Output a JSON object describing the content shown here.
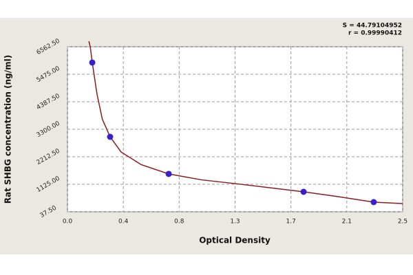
{
  "chart_data": {
    "type": "scatter",
    "annotations": [
      "S = 44.79104952",
      "r = 0.99990412"
    ],
    "x_label": "Optical Density",
    "y_label": "Rat SHBG concentration (ng/ml)",
    "x": [
      0.185,
      0.318,
      0.755,
      1.761,
      2.284
    ],
    "values": [
      5938,
      3001,
      1533,
      826,
      418
    ],
    "color": "#3a20c8",
    "curve": {
      "x": [
        0.17,
        0.185,
        0.22,
        0.26,
        0.318,
        0.4,
        0.55,
        0.755,
        1.0,
        1.3,
        1.761,
        2.0,
        2.284,
        2.5
      ],
      "values": [
        6562.5,
        5938,
        4700,
        3700,
        3001,
        2400,
        1900,
        1533,
        1300,
        1120,
        826,
        650,
        418,
        360
      ],
      "color": "#8b1a1a"
    },
    "xlim": [
      0,
      2.5
    ],
    "xticks": [
      {
        "value": 0,
        "label": "0.0"
      },
      {
        "value": 0.4167,
        "label": "0.4"
      },
      {
        "value": 0.8333,
        "label": "0.8"
      },
      {
        "value": 1.25,
        "label": "1.3"
      },
      {
        "value": 1.6667,
        "label": "1.7"
      },
      {
        "value": 2.0833,
        "label": "2.1"
      },
      2.5
    ],
    "ylim": [
      37.5,
      6562.5
    ],
    "yticks": [
      {
        "value": 37.5,
        "label": "37.50"
      },
      {
        "value": 1125,
        "label": "1125.00"
      },
      {
        "value": 2212.5,
        "label": "2212.50"
      },
      {
        "value": 3300,
        "label": "3300.00"
      },
      {
        "value": 4387.5,
        "label": "4387.50"
      },
      {
        "value": 5475,
        "label": "5475.00"
      },
      {
        "value": 6562.5,
        "label": "6562.50"
      }
    ],
    "grid": true
  }
}
